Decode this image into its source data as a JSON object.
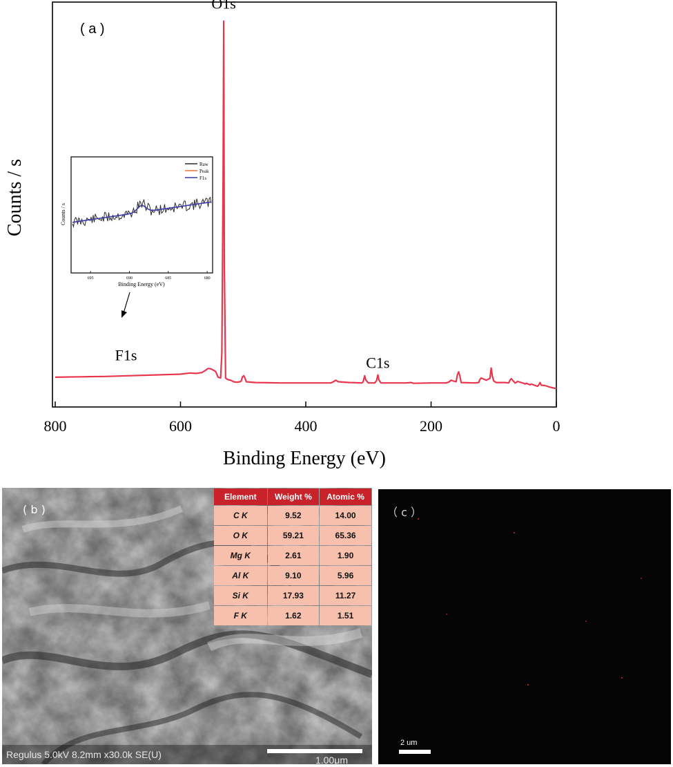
{
  "panel_a": {
    "label": "( a )",
    "chart_data": {
      "type": "line",
      "xlabel": "Binding Energy (eV)",
      "ylabel": "Counts / s",
      "xlim": [
        800,
        0
      ],
      "x_reversed": true,
      "xticks": [
        800,
        600,
        400,
        200,
        0
      ],
      "yticks_shown": false,
      "line_color": "#e8364c",
      "annotations": [
        {
          "text": "O1s",
          "x": 531
        },
        {
          "text": "C1s",
          "x": 285
        },
        {
          "text": "F1s",
          "x": 687
        }
      ],
      "series": [
        {
          "x": [
            800,
            760,
            720,
            680,
            640,
            600,
            585,
            575,
            566,
            560,
            556,
            552,
            548,
            544,
            540,
            536,
            534,
            532,
            531,
            530,
            528,
            525,
            520,
            515,
            510,
            505,
            503,
            501,
            499,
            497,
            495,
            480,
            440,
            400,
            380,
            360,
            356,
            352,
            348,
            330,
            310,
            308,
            306,
            304,
            300,
            290,
            287,
            285,
            283,
            280,
            260,
            240,
            232,
            228,
            200,
            176,
            172,
            168,
            160,
            158,
            156,
            154,
            152,
            130,
            124,
            122,
            120,
            112,
            106,
            104,
            102,
            100,
            96,
            82,
            76,
            74,
            72,
            66,
            64,
            62,
            52,
            50,
            48,
            42,
            40,
            30,
            28,
            26,
            24,
            18,
            10,
            0
          ],
          "y": [
            78,
            79,
            80,
            82,
            84,
            86,
            89,
            88,
            90,
            96,
            101,
            100,
            97,
            93,
            78,
            76,
            140,
            600,
            1010,
            380,
            76,
            72,
            70,
            66,
            65,
            66,
            68,
            79,
            82,
            75,
            66,
            64,
            63,
            63,
            63,
            63,
            66,
            70,
            66,
            64,
            63,
            68,
            82,
            70,
            63,
            63,
            69,
            84,
            70,
            63,
            63,
            63,
            64,
            62,
            63,
            63,
            65,
            70,
            66,
            84,
            92,
            82,
            64,
            63,
            64,
            72,
            76,
            70,
            75,
            102,
            80,
            68,
            64,
            64,
            63,
            70,
            74,
            63,
            64,
            67,
            62,
            60,
            62,
            58,
            60,
            54,
            58,
            64,
            57,
            56,
            52,
            48
          ]
        }
      ]
    },
    "inset": {
      "legend": [
        "Raw",
        "Peak",
        "F1s"
      ],
      "legend_colors": [
        "#2a2a2a",
        "#f07030",
        "#3a3aa8"
      ],
      "ylabel": "Counts / s",
      "xlabel": "Binding Energy (eV)",
      "xticks": [
        695,
        690,
        685,
        680
      ],
      "xlim": [
        697.5,
        679.3
      ]
    }
  },
  "panel_b": {
    "label": "( b )",
    "table": {
      "headers": [
        "Element",
        "Weight %",
        "Atomic %"
      ],
      "rows": [
        {
          "element": "C K",
          "weight": "9.52",
          "atomic": "14.00"
        },
        {
          "element": "O K",
          "weight": "59.21",
          "atomic": "65.36"
        },
        {
          "element": "Mg K",
          "weight": "2.61",
          "atomic": "1.90"
        },
        {
          "element": "Al K",
          "weight": "9.10",
          "atomic": "5.96"
        },
        {
          "element": "Si K",
          "weight": "17.93",
          "atomic": "11.27"
        },
        {
          "element": "F K",
          "weight": "1.62",
          "atomic": "1.51"
        }
      ]
    },
    "info_bar": "Regulus 5.0kV 8.2mm x30.0k SE(U)",
    "scale_bar": "1.00μm"
  },
  "panel_c": {
    "label": "（ c ）",
    "scale_bar": "2 um"
  }
}
